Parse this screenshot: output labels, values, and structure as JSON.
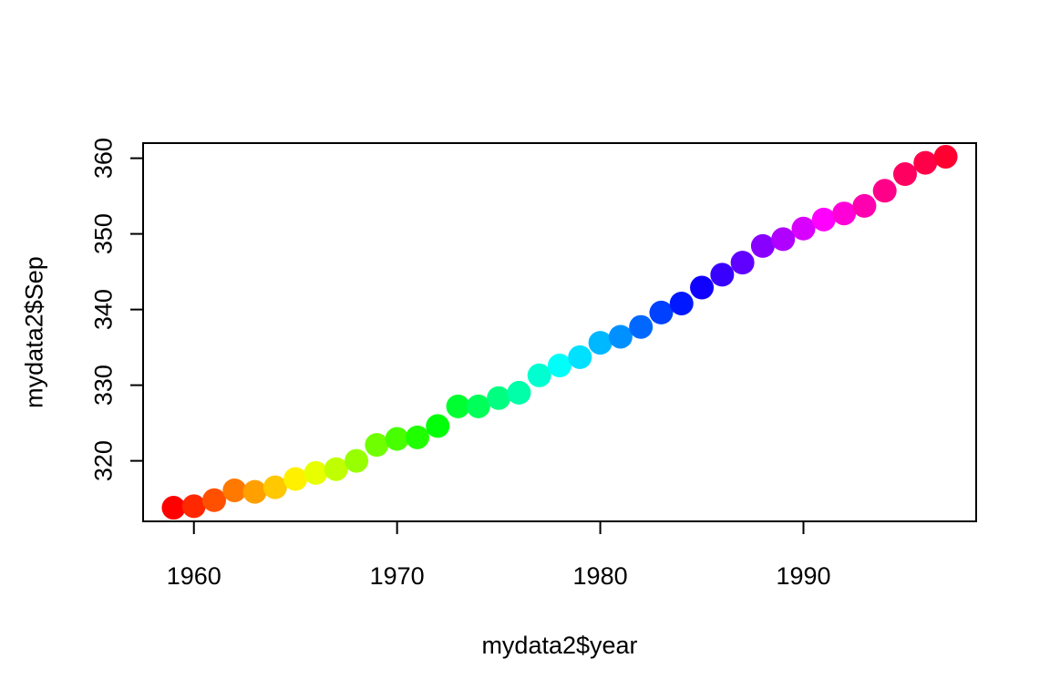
{
  "chart_data": {
    "type": "scatter",
    "xlabel": "mydata2$year",
    "ylabel": "mydata2$Sep",
    "xlim": [
      1957.5,
      1998.5
    ],
    "ylim": [
      312.0,
      362.0
    ],
    "xticks": [
      1960,
      1970,
      1980,
      1990
    ],
    "yticks": [
      320,
      330,
      340,
      350,
      360
    ],
    "grid": false,
    "legend": "none",
    "marker": "filled-circle",
    "color_scheme": "rainbow",
    "points": [
      {
        "x": 1959,
        "y": 313.8,
        "color": "#FF0000"
      },
      {
        "x": 1960,
        "y": 314.0,
        "color": "#FF2800"
      },
      {
        "x": 1961,
        "y": 314.8,
        "color": "#FF5000"
      },
      {
        "x": 1962,
        "y": 316.1,
        "color": "#FF7800"
      },
      {
        "x": 1963,
        "y": 315.9,
        "color": "#FFA000"
      },
      {
        "x": 1964,
        "y": 316.5,
        "color": "#FFC800"
      },
      {
        "x": 1965,
        "y": 317.6,
        "color": "#FFF000"
      },
      {
        "x": 1966,
        "y": 318.4,
        "color": "#E8FF00"
      },
      {
        "x": 1967,
        "y": 318.9,
        "color": "#C0FF00"
      },
      {
        "x": 1968,
        "y": 320.0,
        "color": "#98FF00"
      },
      {
        "x": 1969,
        "y": 322.1,
        "color": "#70FF00"
      },
      {
        "x": 1970,
        "y": 322.9,
        "color": "#48FF00"
      },
      {
        "x": 1971,
        "y": 323.1,
        "color": "#20FF00"
      },
      {
        "x": 1972,
        "y": 324.6,
        "color": "#00FF08"
      },
      {
        "x": 1973,
        "y": 327.2,
        "color": "#00FF30"
      },
      {
        "x": 1974,
        "y": 327.2,
        "color": "#00FF58"
      },
      {
        "x": 1975,
        "y": 328.3,
        "color": "#00FF80"
      },
      {
        "x": 1976,
        "y": 329.0,
        "color": "#00FFA8"
      },
      {
        "x": 1977,
        "y": 331.3,
        "color": "#00FFD0"
      },
      {
        "x": 1978,
        "y": 332.6,
        "color": "#00FFF8"
      },
      {
        "x": 1979,
        "y": 333.7,
        "color": "#00E0FF"
      },
      {
        "x": 1980,
        "y": 335.6,
        "color": "#00B8FF"
      },
      {
        "x": 1981,
        "y": 336.4,
        "color": "#0090FF"
      },
      {
        "x": 1982,
        "y": 337.7,
        "color": "#0068FF"
      },
      {
        "x": 1983,
        "y": 339.6,
        "color": "#0040FF"
      },
      {
        "x": 1984,
        "y": 340.8,
        "color": "#0018FF"
      },
      {
        "x": 1985,
        "y": 342.9,
        "color": "#1000FF"
      },
      {
        "x": 1986,
        "y": 344.6,
        "color": "#3800FF"
      },
      {
        "x": 1987,
        "y": 346.2,
        "color": "#6000FF"
      },
      {
        "x": 1988,
        "y": 348.4,
        "color": "#8800FF"
      },
      {
        "x": 1989,
        "y": 349.3,
        "color": "#B000FF"
      },
      {
        "x": 1990,
        "y": 350.7,
        "color": "#D800FF"
      },
      {
        "x": 1991,
        "y": 351.9,
        "color": "#FF00FF"
      },
      {
        "x": 1992,
        "y": 352.7,
        "color": "#FF00D8"
      },
      {
        "x": 1993,
        "y": 353.7,
        "color": "#FF00B0"
      },
      {
        "x": 1994,
        "y": 355.7,
        "color": "#FF0088"
      },
      {
        "x": 1995,
        "y": 357.9,
        "color": "#FF0060"
      },
      {
        "x": 1996,
        "y": 359.4,
        "color": "#FF0048"
      },
      {
        "x": 1997,
        "y": 360.2,
        "color": "#FF0030"
      }
    ]
  }
}
